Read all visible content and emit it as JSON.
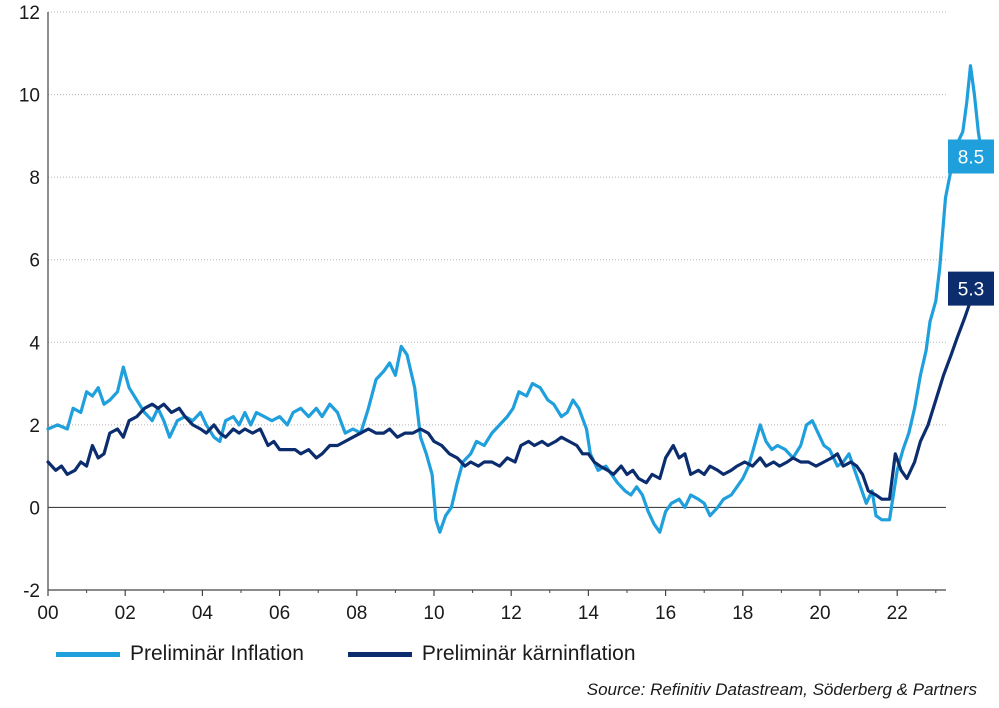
{
  "chart_data": {
    "type": "line",
    "xlim": [
      2000,
      2023.3
    ],
    "ylim": [
      -2,
      12
    ],
    "yticks": [
      -2,
      0,
      2,
      4,
      6,
      8,
      10,
      12
    ],
    "xticks": [
      {
        "value": 2000,
        "label": "00"
      },
      {
        "value": 2002,
        "label": "02"
      },
      {
        "value": 2004,
        "label": "04"
      },
      {
        "value": 2006,
        "label": "06"
      },
      {
        "value": 2008,
        "label": "08"
      },
      {
        "value": 2010,
        "label": "10"
      },
      {
        "value": 2012,
        "label": "12"
      },
      {
        "value": 2014,
        "label": "14"
      },
      {
        "value": 2016,
        "label": "16"
      },
      {
        "value": 2018,
        "label": "18"
      },
      {
        "value": 2020,
        "label": "20"
      },
      {
        "value": 2022,
        "label": "22"
      }
    ],
    "grid": true,
    "series": [
      {
        "name": "Preliminär Inflation",
        "color": "#1f9fdc",
        "end_label": "8.5",
        "points": [
          [
            2000.0,
            1.9
          ],
          [
            2000.25,
            2.0
          ],
          [
            2000.5,
            1.9
          ],
          [
            2000.65,
            2.4
          ],
          [
            2000.85,
            2.3
          ],
          [
            2001.0,
            2.8
          ],
          [
            2001.15,
            2.7
          ],
          [
            2001.3,
            2.9
          ],
          [
            2001.45,
            2.5
          ],
          [
            2001.6,
            2.6
          ],
          [
            2001.8,
            2.8
          ],
          [
            2001.95,
            3.4
          ],
          [
            2002.1,
            2.9
          ],
          [
            2002.3,
            2.6
          ],
          [
            2002.5,
            2.3
          ],
          [
            2002.7,
            2.1
          ],
          [
            2002.85,
            2.4
          ],
          [
            2003.0,
            2.1
          ],
          [
            2003.15,
            1.7
          ],
          [
            2003.35,
            2.1
          ],
          [
            2003.55,
            2.2
          ],
          [
            2003.75,
            2.1
          ],
          [
            2003.95,
            2.3
          ],
          [
            2004.1,
            2.0
          ],
          [
            2004.3,
            1.7
          ],
          [
            2004.45,
            1.6
          ],
          [
            2004.6,
            2.1
          ],
          [
            2004.8,
            2.2
          ],
          [
            2004.95,
            2.0
          ],
          [
            2005.1,
            2.3
          ],
          [
            2005.25,
            2.0
          ],
          [
            2005.4,
            2.3
          ],
          [
            2005.6,
            2.2
          ],
          [
            2005.8,
            2.1
          ],
          [
            2006.0,
            2.2
          ],
          [
            2006.2,
            2.0
          ],
          [
            2006.35,
            2.3
          ],
          [
            2006.55,
            2.4
          ],
          [
            2006.75,
            2.2
          ],
          [
            2006.95,
            2.4
          ],
          [
            2007.1,
            2.2
          ],
          [
            2007.3,
            2.5
          ],
          [
            2007.5,
            2.3
          ],
          [
            2007.7,
            1.8
          ],
          [
            2007.9,
            1.9
          ],
          [
            2008.1,
            1.8
          ],
          [
            2008.3,
            2.4
          ],
          [
            2008.5,
            3.1
          ],
          [
            2008.7,
            3.3
          ],
          [
            2008.85,
            3.5
          ],
          [
            2009.0,
            3.2
          ],
          [
            2009.15,
            3.9
          ],
          [
            2009.3,
            3.7
          ],
          [
            2009.5,
            2.9
          ],
          [
            2009.65,
            1.7
          ],
          [
            2009.8,
            1.3
          ],
          [
            2009.95,
            0.8
          ],
          [
            2010.05,
            -0.3
          ],
          [
            2010.15,
            -0.6
          ],
          [
            2010.3,
            -0.2
          ],
          [
            2010.45,
            0.0
          ],
          [
            2010.6,
            0.6
          ],
          [
            2010.75,
            1.1
          ],
          [
            2010.95,
            1.3
          ],
          [
            2011.1,
            1.6
          ],
          [
            2011.3,
            1.5
          ],
          [
            2011.5,
            1.8
          ],
          [
            2011.7,
            2.0
          ],
          [
            2011.9,
            2.2
          ],
          [
            2012.05,
            2.4
          ],
          [
            2012.2,
            2.8
          ],
          [
            2012.4,
            2.7
          ],
          [
            2012.55,
            3.0
          ],
          [
            2012.75,
            2.9
          ],
          [
            2012.95,
            2.6
          ],
          [
            2013.1,
            2.5
          ],
          [
            2013.3,
            2.2
          ],
          [
            2013.45,
            2.3
          ],
          [
            2013.6,
            2.6
          ],
          [
            2013.75,
            2.4
          ],
          [
            2013.95,
            1.9
          ],
          [
            2014.05,
            1.3
          ],
          [
            2014.25,
            0.9
          ],
          [
            2014.45,
            1.0
          ],
          [
            2014.6,
            0.8
          ],
          [
            2014.75,
            0.6
          ],
          [
            2014.95,
            0.4
          ],
          [
            2015.1,
            0.3
          ],
          [
            2015.25,
            0.5
          ],
          [
            2015.4,
            0.3
          ],
          [
            2015.55,
            -0.1
          ],
          [
            2015.7,
            -0.4
          ],
          [
            2015.85,
            -0.6
          ],
          [
            2016.0,
            -0.1
          ],
          [
            2016.15,
            0.1
          ],
          [
            2016.35,
            0.2
          ],
          [
            2016.5,
            0.0
          ],
          [
            2016.65,
            0.3
          ],
          [
            2016.85,
            0.2
          ],
          [
            2017.0,
            0.1
          ],
          [
            2017.15,
            -0.2
          ],
          [
            2017.35,
            0.0
          ],
          [
            2017.5,
            0.2
          ],
          [
            2017.7,
            0.3
          ],
          [
            2017.85,
            0.5
          ],
          [
            2018.0,
            0.7
          ],
          [
            2018.15,
            1.0
          ],
          [
            2018.3,
            1.5
          ],
          [
            2018.45,
            2.0
          ],
          [
            2018.6,
            1.6
          ],
          [
            2018.75,
            1.4
          ],
          [
            2018.9,
            1.5
          ],
          [
            2019.1,
            1.4
          ],
          [
            2019.3,
            1.2
          ],
          [
            2019.5,
            1.5
          ],
          [
            2019.65,
            2.0
          ],
          [
            2019.8,
            2.1
          ],
          [
            2019.95,
            1.8
          ],
          [
            2020.1,
            1.5
          ],
          [
            2020.25,
            1.4
          ],
          [
            2020.45,
            1.0
          ],
          [
            2020.6,
            1.1
          ],
          [
            2020.75,
            1.3
          ],
          [
            2020.9,
            0.9
          ],
          [
            2021.05,
            0.5
          ],
          [
            2021.2,
            0.1
          ],
          [
            2021.35,
            0.4
          ],
          [
            2021.45,
            -0.2
          ],
          [
            2021.6,
            -0.3
          ],
          [
            2021.8,
            -0.3
          ],
          [
            2022.0,
            0.9
          ],
          [
            2022.15,
            1.4
          ],
          [
            2022.3,
            1.8
          ],
          [
            2022.45,
            2.4
          ],
          [
            2022.6,
            3.2
          ],
          [
            2022.75,
            3.8
          ],
          [
            2022.85,
            4.5
          ],
          [
            2023.0,
            5.0
          ],
          [
            2023.1,
            5.8
          ],
          [
            2023.25,
            7.5
          ],
          [
            2023.4,
            8.2
          ],
          [
            2023.55,
            8.8
          ],
          [
            2023.7,
            9.1
          ],
          [
            2023.8,
            9.8
          ],
          [
            2023.9,
            10.7
          ],
          [
            2024.0,
            10.0
          ],
          [
            2024.1,
            9.1
          ],
          [
            2024.2,
            8.5
          ]
        ]
      },
      {
        "name": "Preliminär kärninflation",
        "color": "#0b2d6e",
        "end_label": "5.3",
        "points": [
          [
            2000.0,
            1.1
          ],
          [
            2000.2,
            0.9
          ],
          [
            2000.35,
            1.0
          ],
          [
            2000.5,
            0.8
          ],
          [
            2000.7,
            0.9
          ],
          [
            2000.85,
            1.1
          ],
          [
            2001.0,
            1.0
          ],
          [
            2001.15,
            1.5
          ],
          [
            2001.3,
            1.2
          ],
          [
            2001.45,
            1.3
          ],
          [
            2001.6,
            1.8
          ],
          [
            2001.8,
            1.9
          ],
          [
            2001.95,
            1.7
          ],
          [
            2002.1,
            2.1
          ],
          [
            2002.3,
            2.2
          ],
          [
            2002.5,
            2.4
          ],
          [
            2002.7,
            2.5
          ],
          [
            2002.85,
            2.4
          ],
          [
            2003.0,
            2.5
          ],
          [
            2003.2,
            2.3
          ],
          [
            2003.4,
            2.4
          ],
          [
            2003.55,
            2.2
          ],
          [
            2003.75,
            2.0
          ],
          [
            2003.95,
            1.9
          ],
          [
            2004.1,
            1.8
          ],
          [
            2004.3,
            2.0
          ],
          [
            2004.45,
            1.8
          ],
          [
            2004.6,
            1.7
          ],
          [
            2004.8,
            1.9
          ],
          [
            2004.95,
            1.8
          ],
          [
            2005.1,
            1.9
          ],
          [
            2005.3,
            1.8
          ],
          [
            2005.5,
            1.9
          ],
          [
            2005.7,
            1.5
          ],
          [
            2005.85,
            1.6
          ],
          [
            2006.0,
            1.4
          ],
          [
            2006.2,
            1.4
          ],
          [
            2006.4,
            1.4
          ],
          [
            2006.55,
            1.3
          ],
          [
            2006.75,
            1.4
          ],
          [
            2006.95,
            1.2
          ],
          [
            2007.1,
            1.3
          ],
          [
            2007.3,
            1.5
          ],
          [
            2007.5,
            1.5
          ],
          [
            2007.7,
            1.6
          ],
          [
            2007.9,
            1.7
          ],
          [
            2008.1,
            1.8
          ],
          [
            2008.3,
            1.9
          ],
          [
            2008.5,
            1.8
          ],
          [
            2008.7,
            1.8
          ],
          [
            2008.85,
            1.9
          ],
          [
            2009.05,
            1.7
          ],
          [
            2009.25,
            1.8
          ],
          [
            2009.45,
            1.8
          ],
          [
            2009.65,
            1.9
          ],
          [
            2009.85,
            1.8
          ],
          [
            2010.0,
            1.6
          ],
          [
            2010.2,
            1.5
          ],
          [
            2010.4,
            1.3
          ],
          [
            2010.6,
            1.2
          ],
          [
            2010.8,
            1.0
          ],
          [
            2010.95,
            1.1
          ],
          [
            2011.15,
            1.0
          ],
          [
            2011.3,
            1.1
          ],
          [
            2011.5,
            1.1
          ],
          [
            2011.7,
            1.0
          ],
          [
            2011.9,
            1.2
          ],
          [
            2012.1,
            1.1
          ],
          [
            2012.25,
            1.5
          ],
          [
            2012.45,
            1.6
          ],
          [
            2012.6,
            1.5
          ],
          [
            2012.8,
            1.6
          ],
          [
            2012.95,
            1.5
          ],
          [
            2013.15,
            1.6
          ],
          [
            2013.3,
            1.7
          ],
          [
            2013.5,
            1.6
          ],
          [
            2013.7,
            1.5
          ],
          [
            2013.85,
            1.3
          ],
          [
            2014.0,
            1.3
          ],
          [
            2014.15,
            1.1
          ],
          [
            2014.3,
            1.0
          ],
          [
            2014.5,
            0.9
          ],
          [
            2014.65,
            0.8
          ],
          [
            2014.85,
            1.0
          ],
          [
            2015.0,
            0.8
          ],
          [
            2015.15,
            0.9
          ],
          [
            2015.3,
            0.7
          ],
          [
            2015.5,
            0.6
          ],
          [
            2015.65,
            0.8
          ],
          [
            2015.85,
            0.7
          ],
          [
            2016.0,
            1.2
          ],
          [
            2016.2,
            1.5
          ],
          [
            2016.35,
            1.2
          ],
          [
            2016.5,
            1.3
          ],
          [
            2016.65,
            0.8
          ],
          [
            2016.85,
            0.9
          ],
          [
            2017.0,
            0.8
          ],
          [
            2017.15,
            1.0
          ],
          [
            2017.35,
            0.9
          ],
          [
            2017.5,
            0.8
          ],
          [
            2017.7,
            0.9
          ],
          [
            2017.85,
            1.0
          ],
          [
            2018.05,
            1.1
          ],
          [
            2018.25,
            1.0
          ],
          [
            2018.45,
            1.2
          ],
          [
            2018.6,
            1.0
          ],
          [
            2018.8,
            1.1
          ],
          [
            2018.95,
            1.0
          ],
          [
            2019.15,
            1.1
          ],
          [
            2019.3,
            1.2
          ],
          [
            2019.5,
            1.1
          ],
          [
            2019.7,
            1.1
          ],
          [
            2019.9,
            1.0
          ],
          [
            2020.1,
            1.1
          ],
          [
            2020.3,
            1.2
          ],
          [
            2020.45,
            1.3
          ],
          [
            2020.6,
            1.0
          ],
          [
            2020.8,
            1.1
          ],
          [
            2020.95,
            1.0
          ],
          [
            2021.1,
            0.8
          ],
          [
            2021.25,
            0.4
          ],
          [
            2021.45,
            0.3
          ],
          [
            2021.6,
            0.2
          ],
          [
            2021.8,
            0.2
          ],
          [
            2021.95,
            1.3
          ],
          [
            2022.1,
            0.9
          ],
          [
            2022.25,
            0.7
          ],
          [
            2022.45,
            1.1
          ],
          [
            2022.6,
            1.6
          ],
          [
            2022.8,
            2.0
          ],
          [
            2023.0,
            2.6
          ],
          [
            2023.2,
            3.2
          ],
          [
            2023.4,
            3.7
          ],
          [
            2023.55,
            4.1
          ],
          [
            2023.75,
            4.6
          ],
          [
            2023.9,
            5.0
          ],
          [
            2024.05,
            5.1
          ],
          [
            2024.2,
            5.3
          ]
        ]
      }
    ],
    "source": "Source: Refinitiv Datastream, Söderberg & Partners"
  }
}
